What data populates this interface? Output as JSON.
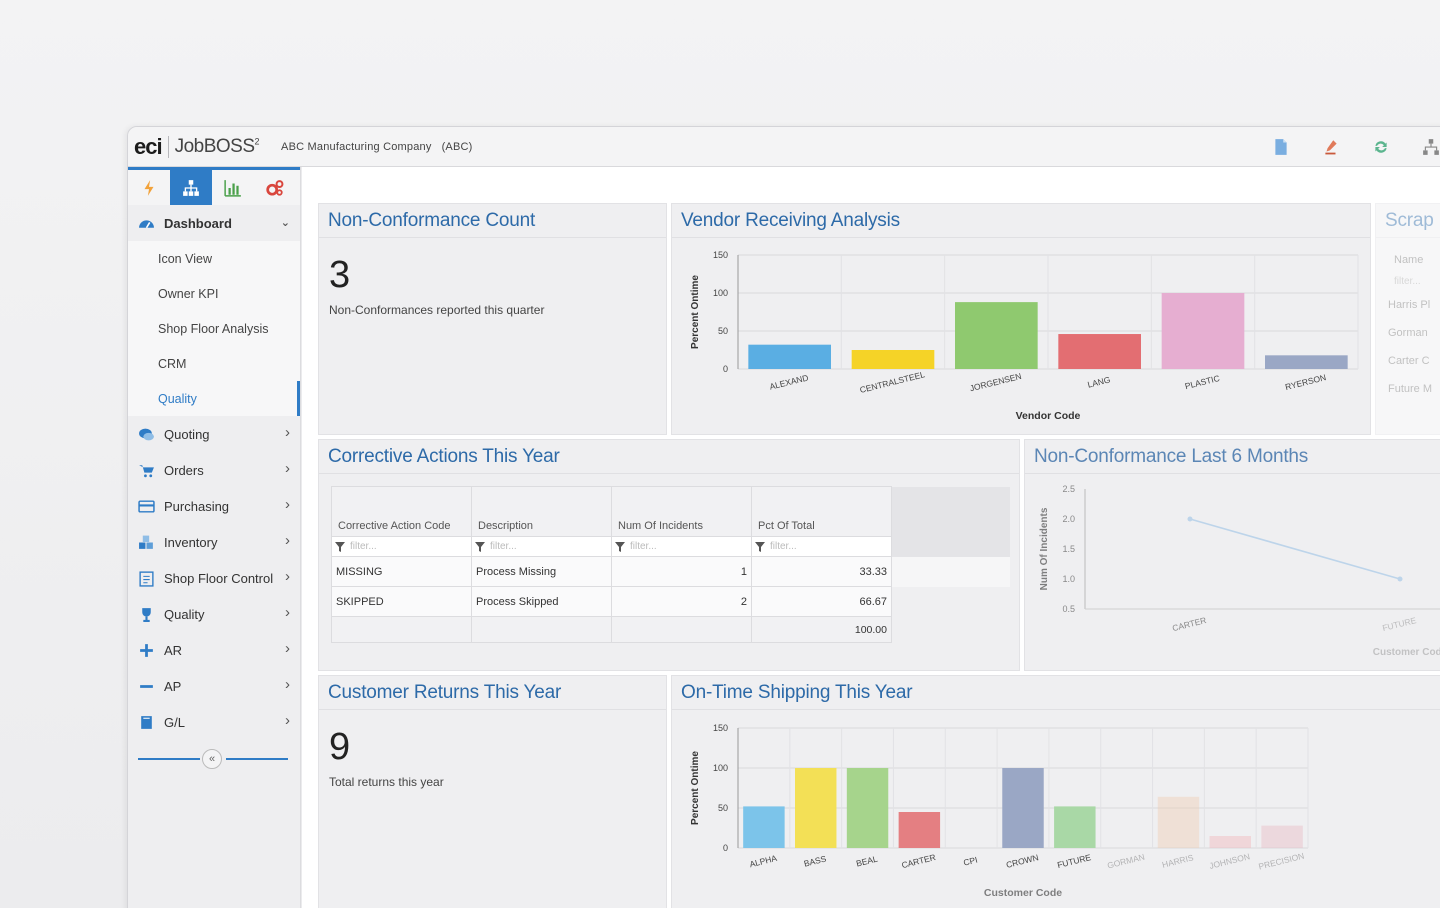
{
  "brand": {
    "eci": "eci",
    "product": "JobBOSS",
    "sup": "2"
  },
  "company": {
    "name": "ABC Manufacturing Company",
    "code": "(ABC)"
  },
  "top_icons": [
    "document-icon",
    "pen-icon",
    "refresh-icon",
    "hierarchy-icon"
  ],
  "sidebar": {
    "module_tabs": [
      "lightning-icon",
      "org-chart-icon",
      "bar-chart-icon",
      "gears-icon"
    ],
    "dashboard": {
      "label": "Dashboard",
      "icon": "dashboard-icon"
    },
    "sub_items": [
      "Icon View",
      "Owner KPI",
      "Shop Floor Analysis",
      "CRM",
      "Quality"
    ],
    "active_sub": "Quality",
    "items": [
      {
        "label": "Quoting",
        "icon": "chat-icon",
        "color": "#2f7cc6"
      },
      {
        "label": "Orders",
        "icon": "cart-icon",
        "color": "#2f7cc6"
      },
      {
        "label": "Purchasing",
        "icon": "card-icon",
        "color": "#2f7cc6"
      },
      {
        "label": "Inventory",
        "icon": "boxes-icon",
        "color": "#2f7cc6"
      },
      {
        "label": "Shop Floor Control",
        "icon": "clipboard-icon",
        "color": "#2f7cc6"
      },
      {
        "label": "Quality",
        "icon": "trophy-icon",
        "color": "#2f7cc6"
      },
      {
        "label": "AR",
        "icon": "plus-icon",
        "color": "#2f7cc6"
      },
      {
        "label": "AP",
        "icon": "minus-icon",
        "color": "#2f7cc6"
      },
      {
        "label": "G/L",
        "icon": "book-icon",
        "color": "#2f7cc6"
      }
    ],
    "collapse_label": "«"
  },
  "panels": {
    "ncc": {
      "title": "Non-Conformance Count",
      "value": "3",
      "subtitle": "Non-Conformances reported this quarter"
    },
    "vra": {
      "title": "Vendor Receiving Analysis"
    },
    "scrap": {
      "title": "Scrap",
      "header": "Name",
      "filter": "filter...",
      "rows": [
        "Harris Pl",
        "Gorman",
        "Carter C",
        "Future M"
      ]
    },
    "ca": {
      "title": "Corrective Actions This Year",
      "headers": [
        "Corrective Action Code",
        "Description",
        "Num Of Incidents",
        "Pct Of Total"
      ],
      "filter_placeholder": "filter...",
      "rows": [
        [
          "MISSING",
          "Process Missing",
          "1",
          "33.33"
        ],
        [
          "SKIPPED",
          "Process Skipped",
          "2",
          "66.67"
        ]
      ],
      "total": "100.00"
    },
    "nc6": {
      "title": "Non-Conformance Last 6 Months"
    },
    "cr": {
      "title": "Customer Returns This Year",
      "value": "9",
      "subtitle": "Total returns this year"
    },
    "ots": {
      "title": "On-Time Shipping This Year"
    }
  },
  "chart_data": [
    {
      "type": "bar",
      "ylabel": "Percent Ontime",
      "xlabel": "Vendor Code",
      "ylim": [
        0,
        150
      ],
      "yticks": [
        "150",
        "100",
        "50",
        "0"
      ],
      "categories": [
        "ALEXAND",
        "CENTRALSTEEL",
        "JORGENSEN",
        "LANG",
        "PLASTIC",
        "RYERSON"
      ],
      "values": [
        32,
        25,
        88,
        46,
        100,
        18
      ],
      "colors": [
        "#5aaee3",
        "#f5d327",
        "#8fc96f",
        "#e36e72",
        "#e6aed1",
        "#9aa7c5"
      ]
    },
    {
      "type": "line",
      "ylabel": "Num Of Incidents",
      "xlabel": "Customer Code",
      "ylim": [
        0.5,
        2.5
      ],
      "yticks": [
        "2.5",
        "2.0",
        "1.5",
        "1.0",
        "0.5"
      ],
      "categories": [
        "CARTER",
        "FUTURE"
      ],
      "values": [
        2.0,
        1.0
      ]
    },
    {
      "type": "bar",
      "ylabel": "Percent Ontime",
      "xlabel": "Customer Code",
      "ylim": [
        0,
        150
      ],
      "yticks": [
        "150",
        "100",
        "50",
        "0"
      ],
      "categories": [
        "ALPHA",
        "BASS",
        "BEAL",
        "CARTER",
        "CPI",
        "CROWN",
        "FUTURE",
        "GORMAN",
        "HARRIS",
        "JOHNSON",
        "PRECISION"
      ],
      "values": [
        52,
        100,
        100,
        45,
        0,
        100,
        52,
        0,
        64,
        15,
        28
      ],
      "colors": [
        "#7cc4ea",
        "#f3e056",
        "#a6d48c",
        "#e47f82",
        "#cccccc",
        "#9aa7c5",
        "#a9d8a6",
        "#cccccc",
        "#f0cfb6",
        "#f2b8bc",
        "#e9bcc6"
      ]
    }
  ]
}
